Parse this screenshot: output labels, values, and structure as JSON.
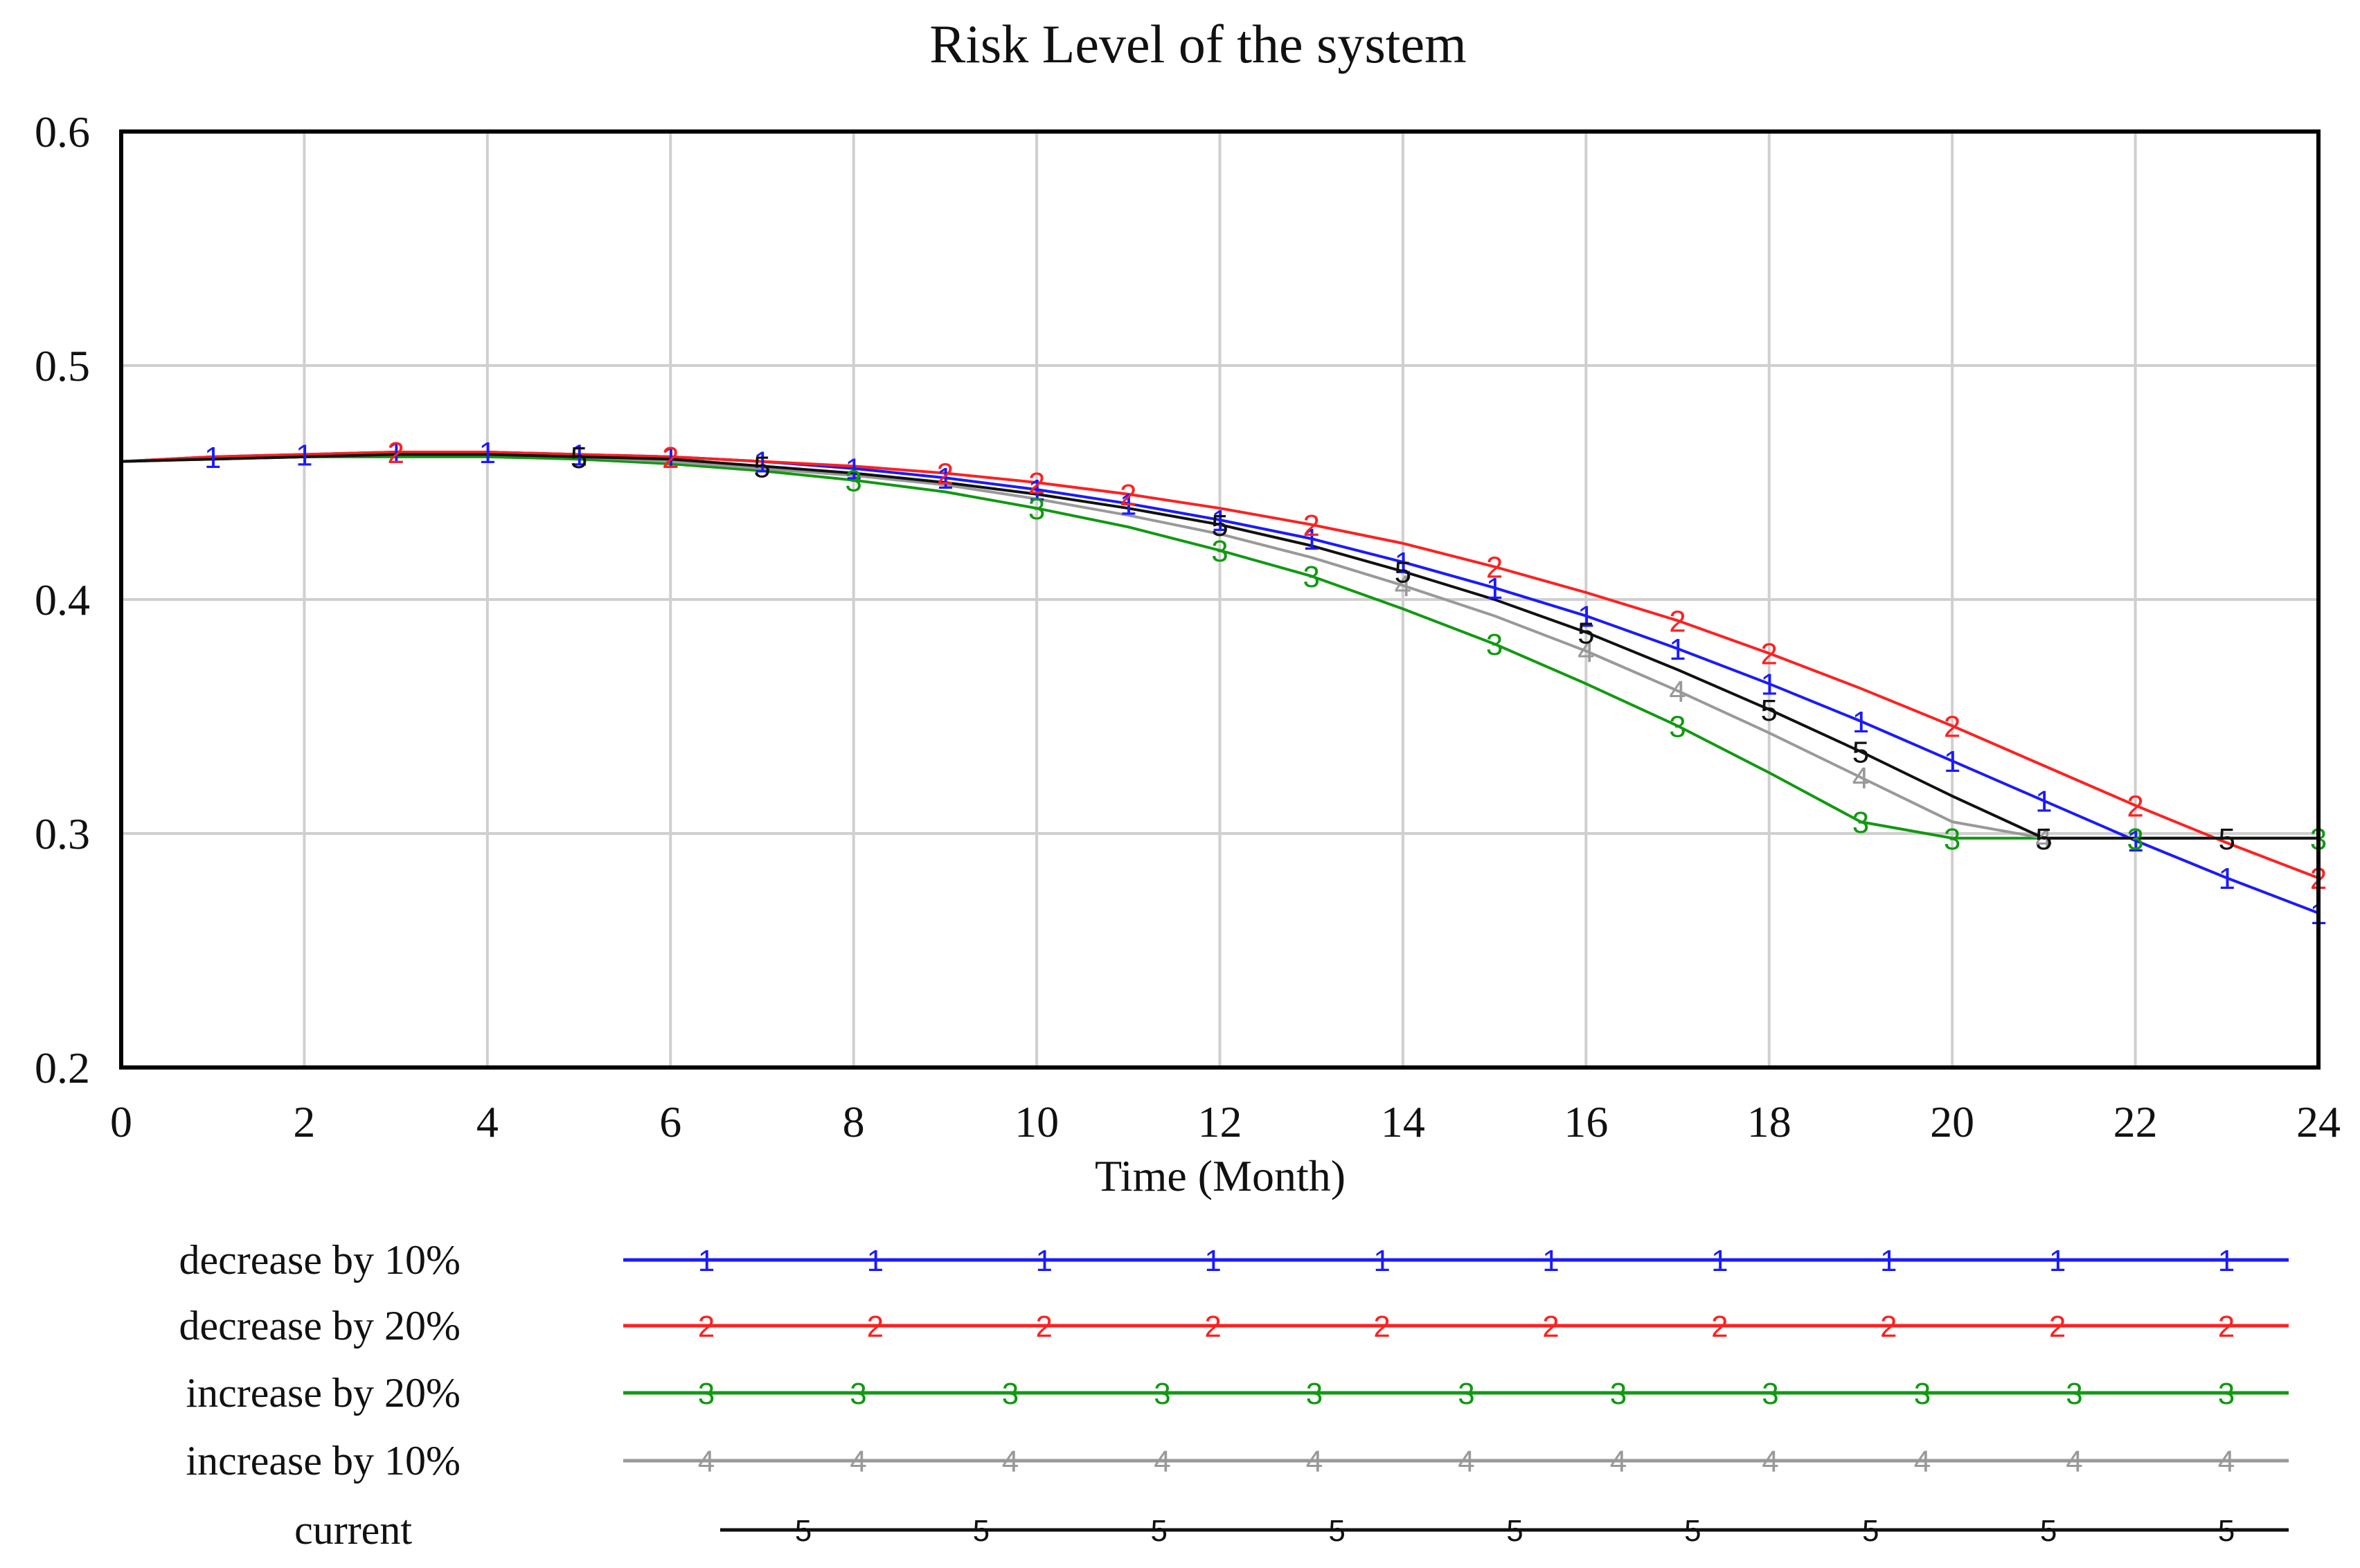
{
  "chart_data": {
    "type": "line",
    "title": "Risk Level of the system",
    "xlabel": "Time (Month)",
    "ylabel": "",
    "xlim": [
      0,
      24
    ],
    "ylim": [
      0.2,
      0.6
    ],
    "x_ticks": [
      0,
      2,
      4,
      6,
      8,
      10,
      12,
      14,
      16,
      18,
      20,
      22,
      24
    ],
    "y_ticks": [
      0.2,
      0.3,
      0.4,
      0.5,
      0.6
    ],
    "x_tick_labels": [
      "0",
      "2",
      "4",
      "6",
      "8",
      "10",
      "12",
      "14",
      "16",
      "18",
      "20",
      "22",
      "24"
    ],
    "y_tick_labels": [
      "0.2",
      "0.3",
      "0.4",
      "0.5",
      "0.6"
    ],
    "grid": true,
    "legend_position": "bottom",
    "x": [
      0,
      1,
      2,
      3,
      4,
      5,
      6,
      7,
      8,
      9,
      10,
      11,
      12,
      13,
      14,
      15,
      16,
      17,
      18,
      19,
      20,
      21,
      22,
      23,
      24
    ],
    "series": [
      {
        "name": "decrease by 10%",
        "marker": "1",
        "color": "#1a1aff",
        "values": [
          0.459,
          0.461,
          0.462,
          0.463,
          0.463,
          0.462,
          0.461,
          0.459,
          0.456,
          0.452,
          0.447,
          0.441,
          0.434,
          0.426,
          0.416,
          0.405,
          0.393,
          0.379,
          0.364,
          0.348,
          0.331,
          0.314,
          0.297,
          0.281,
          0.266
        ],
        "marker_x": [
          1,
          2,
          3,
          4,
          5,
          6,
          7,
          8,
          9,
          10,
          11,
          12,
          13,
          14,
          15,
          16,
          17,
          18,
          19,
          20,
          21,
          22,
          23,
          24
        ]
      },
      {
        "name": "decrease by 20%",
        "marker": "2",
        "color": "#ff2020",
        "values": [
          0.459,
          0.461,
          0.462,
          0.463,
          0.463,
          0.462,
          0.461,
          0.459,
          0.457,
          0.454,
          0.45,
          0.445,
          0.439,
          0.432,
          0.424,
          0.414,
          0.403,
          0.391,
          0.377,
          0.362,
          0.346,
          0.329,
          0.312,
          0.296,
          0.281
        ],
        "marker_x": [
          3,
          6,
          9,
          10,
          11,
          13,
          15,
          17,
          18,
          20,
          22,
          24
        ]
      },
      {
        "name": "increase by 20%",
        "marker": "3",
        "color": "#119911",
        "values": [
          0.459,
          0.46,
          0.461,
          0.461,
          0.461,
          0.46,
          0.458,
          0.455,
          0.451,
          0.446,
          0.439,
          0.431,
          0.421,
          0.41,
          0.396,
          0.381,
          0.364,
          0.346,
          0.326,
          0.305,
          0.298,
          0.298,
          0.298,
          0.298,
          0.298
        ],
        "marker_x": [
          8,
          10,
          12,
          13,
          15,
          17,
          19,
          20,
          22,
          24
        ]
      },
      {
        "name": "increase by 10%",
        "marker": "4",
        "color": "#999999",
        "values": [
          0.459,
          0.46,
          0.461,
          0.462,
          0.462,
          0.461,
          0.459,
          0.456,
          0.453,
          0.449,
          0.443,
          0.436,
          0.428,
          0.418,
          0.406,
          0.393,
          0.378,
          0.361,
          0.343,
          0.324,
          0.305,
          0.298,
          0.298,
          0.298,
          0.298
        ],
        "marker_x": [
          14,
          16,
          17,
          19,
          21
        ]
      },
      {
        "name": "current",
        "marker": "5",
        "color": "#111111",
        "values": [
          0.459,
          0.46,
          0.461,
          0.462,
          0.462,
          0.461,
          0.46,
          0.457,
          0.454,
          0.45,
          0.445,
          0.439,
          0.432,
          0.423,
          0.412,
          0.4,
          0.386,
          0.37,
          0.353,
          0.335,
          0.316,
          0.298,
          0.298,
          0.298,
          0.298
        ],
        "marker_x": [
          5,
          7,
          12,
          14,
          16,
          18,
          19,
          21,
          23
        ]
      }
    ],
    "legend_marker_counts": [
      10,
      10,
      11,
      11,
      9
    ]
  }
}
